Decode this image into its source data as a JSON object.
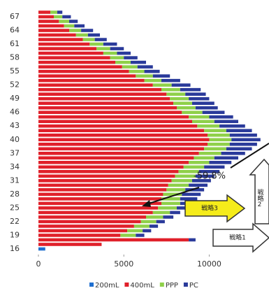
{
  "chart_data": {
    "type": "stacked-barh",
    "categories": [
      "16",
      null,
      null,
      "19",
      null,
      null,
      "22",
      null,
      null,
      "25",
      null,
      null,
      "28",
      null,
      null,
      "31",
      null,
      null,
      "34",
      null,
      null,
      "37",
      null,
      null,
      "40",
      null,
      null,
      "43",
      null,
      null,
      "46",
      null,
      null,
      "49",
      null,
      null,
      "52",
      null,
      null,
      "55",
      null,
      null,
      "58",
      null,
      null,
      "61",
      null,
      null,
      "64",
      null,
      null,
      "67",
      null,
      null
    ],
    "series": [
      {
        "name": "200mL",
        "color": "#1f6fd0",
        "values": [
          400,
          0,
          0,
          0,
          0,
          0,
          0,
          0,
          0,
          0,
          0,
          0,
          0,
          0,
          0,
          0,
          0,
          0,
          0,
          0,
          0,
          0,
          0,
          0,
          0,
          0,
          0,
          0,
          0,
          0,
          0,
          0,
          0,
          0,
          0,
          0,
          0,
          0,
          0,
          0,
          0,
          0,
          0,
          0,
          0,
          0,
          0,
          0,
          0,
          0,
          0,
          0,
          0,
          0
        ]
      },
      {
        "name": "400mL",
        "color": "#e0202a",
        "values": [
          0,
          3700,
          8800,
          4800,
          5200,
          5600,
          6000,
          6300,
          6700,
          7000,
          7200,
          7200,
          7300,
          7500,
          7600,
          7800,
          8000,
          8200,
          8500,
          8800,
          9100,
          9400,
          9700,
          9900,
          10000,
          9900,
          9700,
          9300,
          9000,
          8800,
          8400,
          8100,
          7900,
          7700,
          7500,
          7200,
          6700,
          6200,
          5700,
          5300,
          4900,
          4500,
          4200,
          3800,
          3400,
          3000,
          2600,
          2200,
          1800,
          1500,
          1200,
          900,
          700,
          0
        ]
      },
      {
        "name": "PPP",
        "color": "#8fd04a",
        "values": [
          0,
          0,
          0,
          900,
          900,
          900,
          900,
          1000,
          1000,
          1100,
          1100,
          1100,
          1100,
          1100,
          1200,
          1200,
          1200,
          1200,
          1200,
          1200,
          1200,
          1300,
          1300,
          1300,
          1300,
          1300,
          1300,
          1300,
          1300,
          1200,
          1200,
          1100,
          1100,
          1100,
          1100,
          1100,
          1100,
          1000,
          1000,
          900,
          900,
          900,
          800,
          800,
          800,
          800,
          700,
          700,
          700,
          600,
          600,
          500,
          400,
          0
        ]
      },
      {
        "name": "PC",
        "color": "#2a3a9a",
        "values": [
          0,
          0,
          400,
          500,
          500,
          500,
          500,
          600,
          600,
          800,
          1000,
          1000,
          1100,
          1100,
          1100,
          1100,
          1100,
          1200,
          1200,
          1300,
          1400,
          1400,
          1500,
          1600,
          1700,
          1600,
          1500,
          1500,
          1400,
          1400,
          1300,
          1300,
          1300,
          1200,
          1200,
          1200,
          1100,
          1100,
          1000,
          900,
          900,
          900,
          800,
          800,
          800,
          800,
          700,
          700,
          700,
          600,
          500,
          500,
          300,
          0
        ]
      }
    ],
    "xlim": [
      0,
      13500
    ],
    "xticks": [
      0,
      5000,
      10000
    ],
    "annotations": [
      "-59.8%",
      "戦略3",
      "戦略2",
      "戦略1"
    ]
  }
}
